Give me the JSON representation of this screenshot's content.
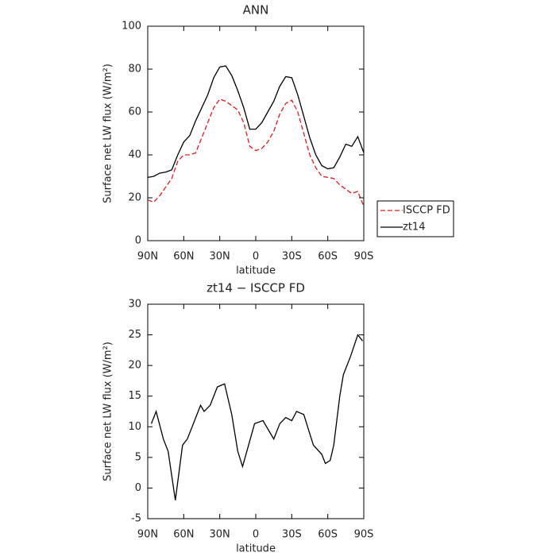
{
  "chart_data": [
    {
      "type": "line",
      "title": "ANN",
      "xlabel": "latitude",
      "ylabel": "Surface net LW flux (W/m²)",
      "x": [
        90,
        85,
        80,
        75,
        70,
        65,
        60,
        55,
        50,
        45,
        40,
        35,
        30,
        25,
        20,
        15,
        10,
        5,
        0,
        -5,
        -10,
        -15,
        -20,
        -25,
        -30,
        -35,
        -40,
        -45,
        -50,
        -55,
        -60,
        -65,
        -70,
        -75,
        -80,
        -85,
        -90
      ],
      "series": [
        {
          "name": "ISCCP FD",
          "color": "#e41a1c",
          "line_style": "dashed",
          "values": [
            19,
            18,
            21,
            25,
            29,
            37,
            40,
            40,
            41,
            48,
            55,
            62,
            66,
            65,
            63,
            61,
            55,
            44,
            42,
            43,
            46,
            51,
            59,
            64,
            65.5,
            60,
            50,
            40,
            34,
            30,
            29.5,
            29,
            26,
            24,
            22,
            23,
            16
          ]
        },
        {
          "name": "zt14",
          "color": "#000000",
          "line_style": "solid",
          "values": [
            29.5,
            30,
            31.5,
            32,
            33,
            40,
            46,
            49,
            56,
            62,
            68,
            76,
            81,
            81.5,
            77,
            70,
            62,
            52,
            52,
            55,
            60,
            65,
            72,
            76.5,
            76,
            68,
            58,
            48,
            40,
            35,
            33.5,
            34,
            39,
            45,
            44,
            48.5,
            41
          ]
        }
      ],
      "xlim": [
        90,
        -90
      ],
      "xticks": [
        {
          "value": 90,
          "label": "90N"
        },
        {
          "value": 60,
          "label": "60N"
        },
        {
          "value": 30,
          "label": "30N"
        },
        0,
        {
          "value": -30,
          "label": "30S"
        },
        {
          "value": -60,
          "label": "60S"
        },
        {
          "value": -90,
          "label": "90S"
        }
      ],
      "ylim": [
        0,
        100
      ],
      "yticks": [
        0,
        20,
        40,
        60,
        80,
        100
      ],
      "legend": "right"
    },
    {
      "type": "line",
      "title": "zt14 − ISCCP FD",
      "xlabel": "latitude",
      "ylabel": "Surface net LW flux (W/m²)",
      "x": [
        87,
        83,
        77,
        73,
        67,
        61,
        57,
        50,
        46,
        43,
        38,
        32,
        26,
        20,
        15,
        11,
        6,
        1,
        -6,
        -12,
        -15,
        -20,
        -25,
        -30,
        -34,
        -40,
        -48,
        -55,
        -58,
        -62,
        -65,
        -70,
        -73,
        -79,
        -85,
        -89
      ],
      "series": [
        {
          "name": "zt14 − ISCCP FD",
          "color": "#000000",
          "line_style": "solid",
          "values": [
            10.5,
            12.5,
            8,
            6,
            -2,
            7,
            8,
            11.5,
            13.5,
            12.5,
            13.5,
            16.5,
            17,
            12,
            6,
            3.5,
            7,
            10.5,
            11,
            9,
            8,
            10.5,
            11.5,
            11,
            12.5,
            12,
            7,
            5.5,
            4,
            4.5,
            7,
            15,
            18.5,
            21.5,
            25,
            24
          ]
        }
      ],
      "xlim": [
        90,
        -90
      ],
      "xticks": [
        {
          "value": 90,
          "label": "90N"
        },
        {
          "value": 60,
          "label": "60N"
        },
        {
          "value": 30,
          "label": "30N"
        },
        0,
        {
          "value": -30,
          "label": "30S"
        },
        {
          "value": -60,
          "label": "60S"
        },
        {
          "value": -90,
          "label": "90S"
        }
      ],
      "ylim": [
        -5,
        30
      ],
      "yticks": [
        -5,
        0,
        5,
        10,
        15,
        20,
        25,
        30
      ]
    }
  ]
}
